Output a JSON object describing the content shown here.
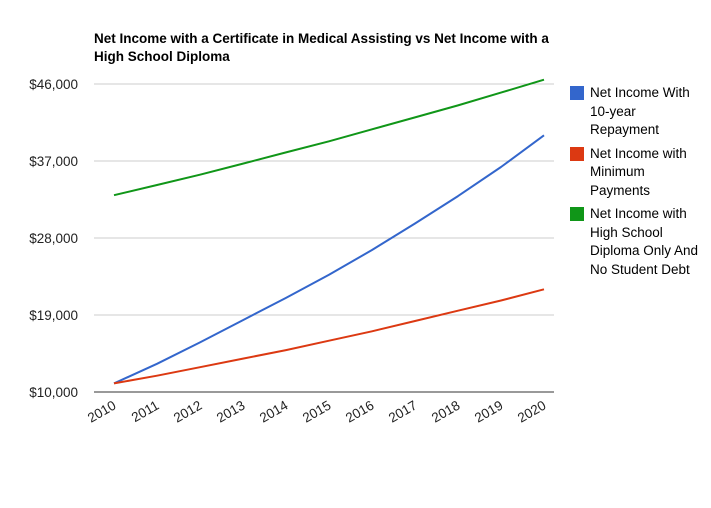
{
  "chart_data": {
    "type": "line",
    "title": "Net Income with a Certificate in Medical Assisting vs Net Income with a High School Diploma",
    "xlabel": "",
    "ylabel": "",
    "x": [
      "2010",
      "2011",
      "2012",
      "2013",
      "2014",
      "2015",
      "2016",
      "2017",
      "2018",
      "2019",
      "2020"
    ],
    "ylim": [
      10000,
      46000
    ],
    "yticks": [
      10000,
      19000,
      28000,
      37000,
      46000
    ],
    "ytick_labels": [
      "$10,000",
      "$19,000",
      "$28,000",
      "$37,000",
      "$46,000"
    ],
    "grid": true,
    "legend_position": "right",
    "series": [
      {
        "name": "Net Income With 10-year Repayment",
        "color": "#3366cc",
        "values": [
          11000,
          13300,
          15800,
          18400,
          21000,
          23700,
          26600,
          29700,
          32900,
          36300,
          40000
        ]
      },
      {
        "name": "Net Income with Minimum Payments",
        "color": "#dc3912",
        "values": [
          11000,
          11900,
          12900,
          13900,
          14900,
          16000,
          17100,
          18300,
          19500,
          20700,
          22000
        ]
      },
      {
        "name": "Net Income with High School Diploma Only And No Student Debt",
        "color": "#109618",
        "values": [
          33000,
          34200,
          35400,
          36700,
          38000,
          39300,
          40700,
          42100,
          43500,
          45000,
          46500
        ]
      }
    ]
  }
}
